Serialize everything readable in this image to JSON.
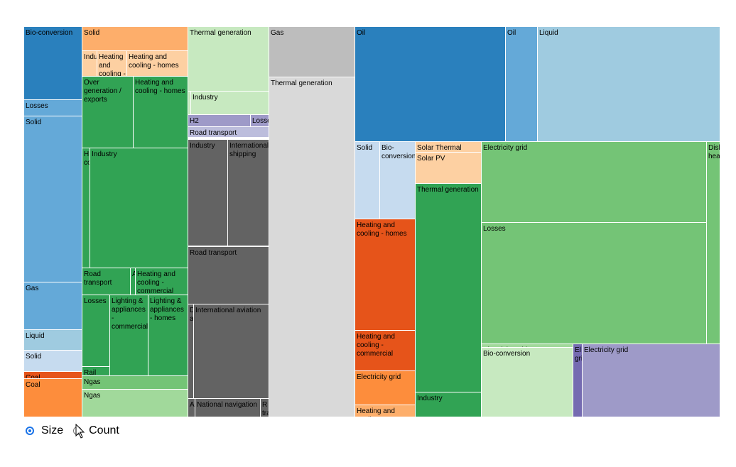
{
  "treemap": {
    "cells": [
      {
        "label": "Bio-conversion",
        "color": "#2a80bd"
      },
      {
        "label": "Losses",
        "color": "#64a9d8"
      },
      {
        "label": "Solid",
        "color": "#64a9d8"
      },
      {
        "label": "Gas",
        "color": "#64a9d8"
      },
      {
        "label": "Liquid",
        "color": "#9fcbe0"
      },
      {
        "label": "Solid",
        "color": "#c6dbef"
      },
      {
        "label": "Coal",
        "color": "#e6541a"
      },
      {
        "label": "Coal",
        "color": "#fd8d3c"
      },
      {
        "label": "Solid",
        "color": "#fdae6b"
      },
      {
        "label": "Indu",
        "color": "#fdd0a2"
      },
      {
        "label": "Heating and cooling -",
        "color": "#fdd0a2"
      },
      {
        "label": "Heating and cooling - homes",
        "color": "#fdd0a2"
      },
      {
        "label": "Over generation / exports",
        "color": "#31a354"
      },
      {
        "label": "Heating and cooling - homes",
        "color": "#31a354"
      },
      {
        "label": "H co",
        "color": "#31a354"
      },
      {
        "label": "Industry",
        "color": "#31a354"
      },
      {
        "label": "Road transport",
        "color": "#31a354"
      },
      {
        "label": "A",
        "color": "#31a354"
      },
      {
        "label": "Heating and cooling - commercial",
        "color": "#31a354"
      },
      {
        "label": "Losses",
        "color": "#31a354"
      },
      {
        "label": "Lighting & appliances - commercial",
        "color": "#31a354"
      },
      {
        "label": "Lighting & appliances - homes",
        "color": "#31a354"
      },
      {
        "label": "Rail",
        "color": "#31a354"
      },
      {
        "label": "Ngas",
        "color": "#74c476"
      },
      {
        "label": "Ngas",
        "color": "#a1d99b"
      },
      {
        "label": "Thermal generation",
        "color": "#c7e9c0"
      },
      {
        "label": "I",
        "color": "#c7e9c0"
      },
      {
        "label": "Industry",
        "color": "#c7e9c0"
      },
      {
        "label": "H2",
        "color": "#9e9ac8"
      },
      {
        "label": "Losses",
        "color": "#9e9ac8"
      },
      {
        "label": "Road transport",
        "color": "#bcbddc"
      },
      {
        "label": "Industry",
        "color": "#636363"
      },
      {
        "label": "International shipping",
        "color": "#636363"
      },
      {
        "label": "Road transport",
        "color": "#636363"
      },
      {
        "label": "D a",
        "color": "#636363"
      },
      {
        "label": "International aviation",
        "color": "#636363"
      },
      {
        "label": "A",
        "color": "#636363"
      },
      {
        "label": "National navigation",
        "color": "#636363"
      },
      {
        "label": "R tra",
        "color": "#636363"
      },
      {
        "label": "Gas",
        "color": "#bdbdbd"
      },
      {
        "label": "Thermal generation",
        "color": "#d9d9d9"
      },
      {
        "label": "Oil",
        "color": "#2a80bd"
      },
      {
        "label": "Oil",
        "color": "#64a9d8"
      },
      {
        "label": "Liquid",
        "color": "#9fcbe0"
      },
      {
        "label": "Solid",
        "color": "#c6dbef"
      },
      {
        "label": "Bio-conversion",
        "color": "#c6dbef"
      },
      {
        "label": "Solar Thermal",
        "color": "#fdd0a2"
      },
      {
        "label": "Solar PV",
        "color": "#fdd0a2"
      },
      {
        "label": "Heating and cooling - homes",
        "color": "#e6541a"
      },
      {
        "label": "Heating and cooling - commercial",
        "color": "#e6541a"
      },
      {
        "label": "Electricity grid",
        "color": "#fd8d3c"
      },
      {
        "label": "Heating and cooling -",
        "color": "#fdae6b"
      },
      {
        "label": "Thermal generation",
        "color": "#31a354"
      },
      {
        "label": "Industry",
        "color": "#31a354"
      },
      {
        "label": "Electricity grid",
        "color": "#74c476"
      },
      {
        "label": "Losses",
        "color": "#74c476"
      },
      {
        "label": "Electricity grid",
        "color": "#a1d99b"
      },
      {
        "label": "Bio-conversion",
        "color": "#c7e9c0"
      },
      {
        "label": "El gri",
        "color": "#756bb1"
      },
      {
        "label": "Electricity grid",
        "color": "#9e9ac8"
      },
      {
        "label": "Disl heat",
        "color": "#74c476"
      }
    ]
  },
  "controls": {
    "size_label": "Size",
    "count_label": "Count",
    "selected": "Size"
  }
}
